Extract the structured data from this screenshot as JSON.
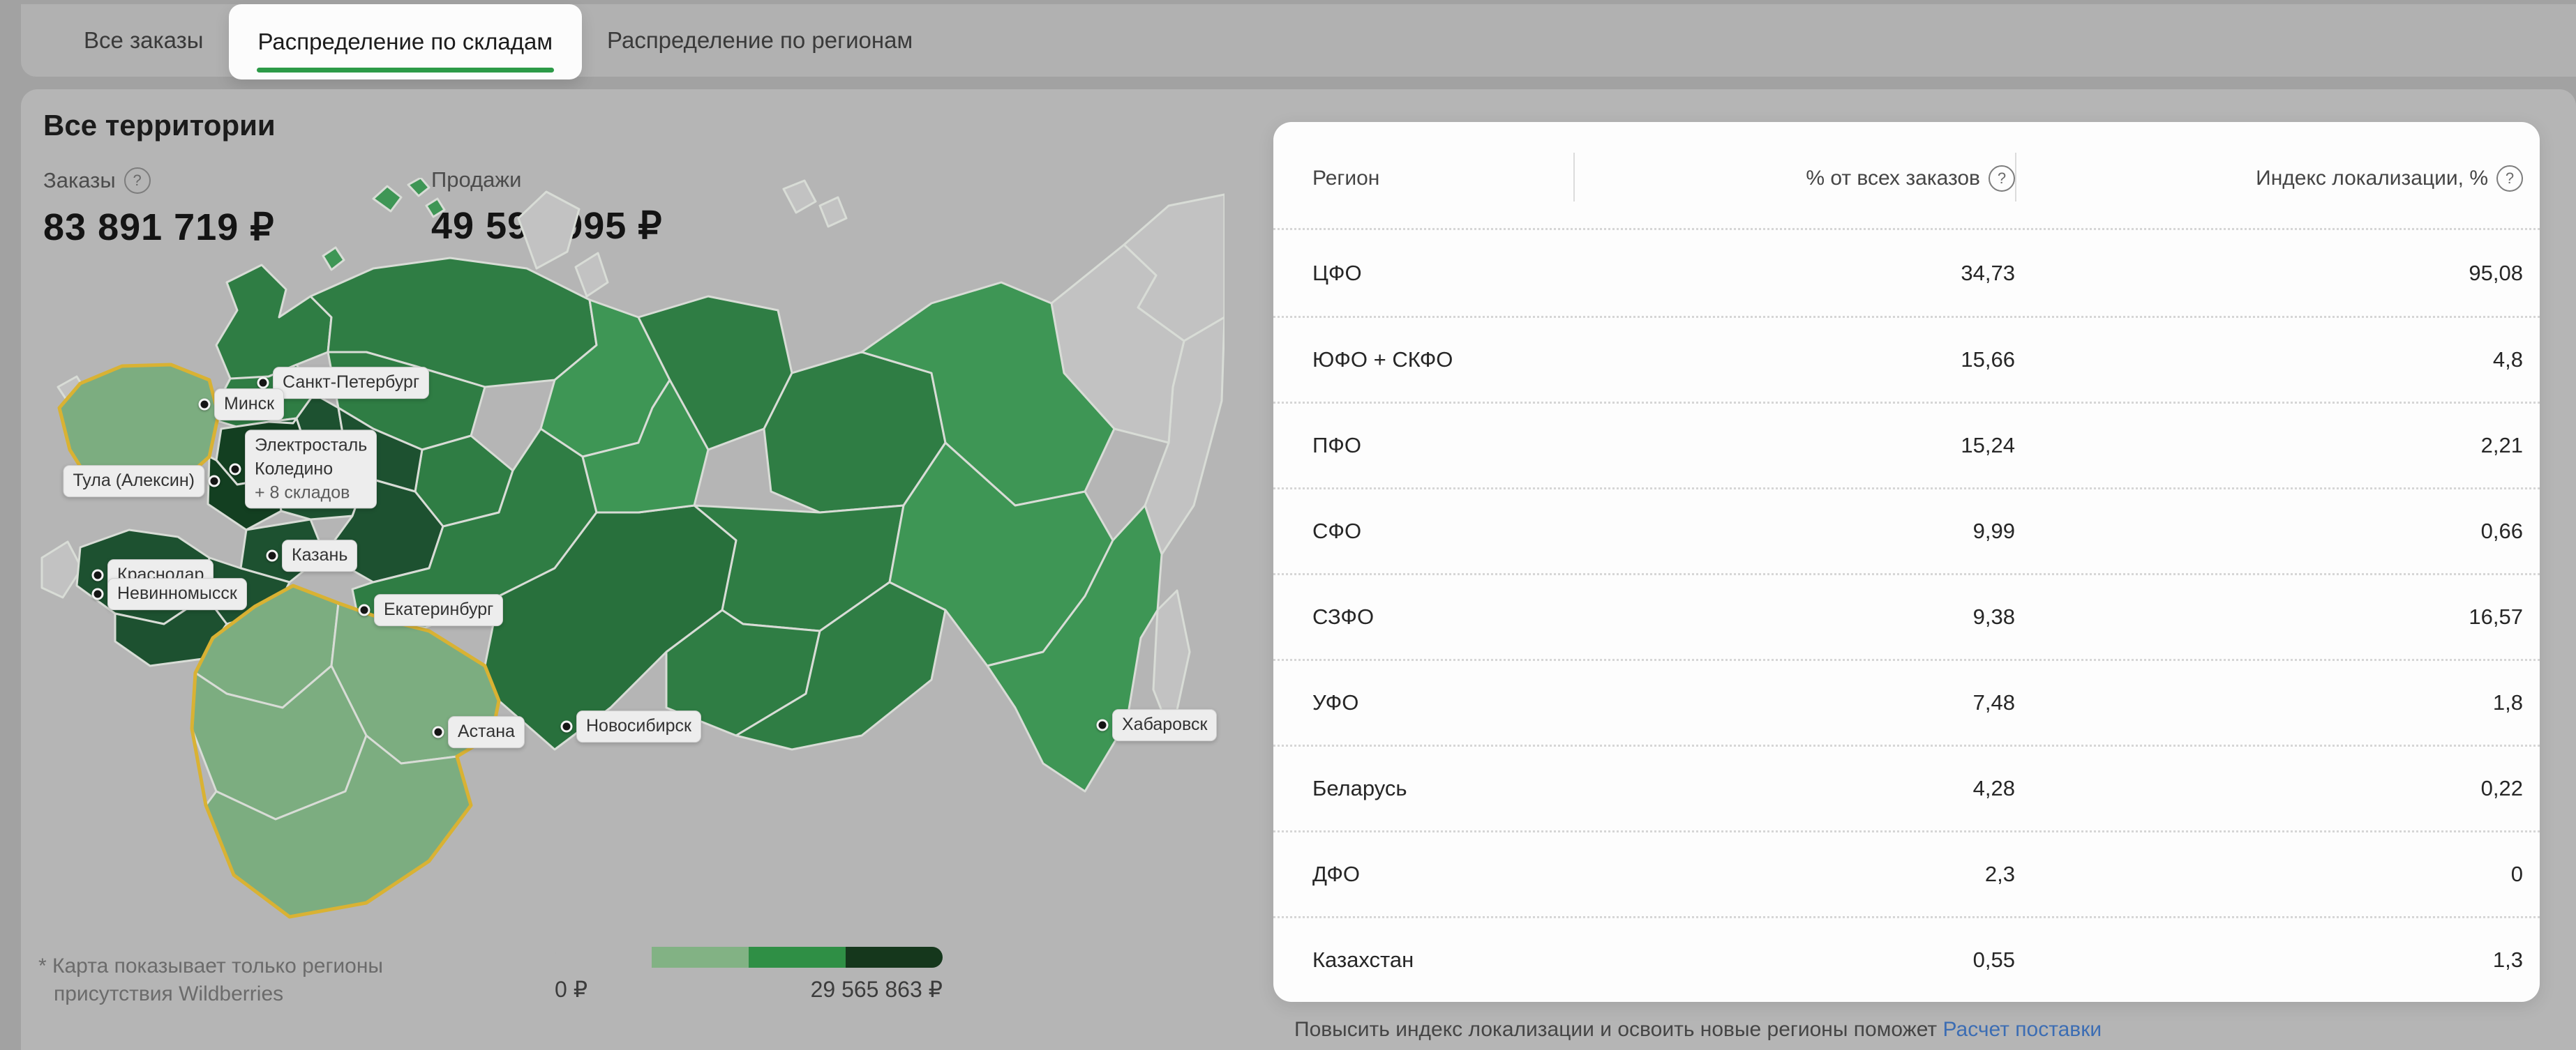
{
  "tabs": {
    "items": [
      {
        "label": "Все заказы",
        "active": false
      },
      {
        "label": "Распределение по складам",
        "active": true
      },
      {
        "label": "Распределение по регионам",
        "active": false
      }
    ]
  },
  "territory": {
    "title": "Все территории"
  },
  "stats": {
    "orders_label": "Заказы",
    "orders_value": "83 891 719 ₽",
    "sales_label": "Продажи",
    "sales_value": "49 592 995 ₽"
  },
  "map": {
    "footnote": "* Карта показывает только регионы присутствия Wildberries",
    "legend": {
      "min_label": "0 ₽",
      "max_label": "29 565 863 ₽",
      "colors": [
        "#b5b5b5",
        "#82b284",
        "#2f8f45",
        "#15371c"
      ]
    },
    "labels": [
      {
        "text": "Санкт-Петербург",
        "dot": [
          322,
          294
        ],
        "chip": [
          336,
          294
        ],
        "side": "right"
      },
      {
        "text": "Минск",
        "dot": [
          238,
          325
        ],
        "chip": [
          252,
          325
        ],
        "side": "right"
      },
      {
        "lines": [
          "Электросталь",
          "Коледино",
          "+ 8 складов"
        ],
        "dot": [
          282,
          418
        ],
        "chip": [
          296,
          418
        ],
        "side": "right"
      },
      {
        "text": "Тула (Алексин)",
        "dot": [
          252,
          435
        ],
        "chip": [
          238,
          435
        ],
        "side": "left"
      },
      {
        "text": "Краснодар",
        "dot": [
          85,
          570
        ],
        "chip": [
          99,
          570
        ],
        "side": "right"
      },
      {
        "text": "Невинномысск",
        "dot": [
          85,
          597
        ],
        "chip": [
          99,
          597
        ],
        "side": "right"
      },
      {
        "text": "Казань",
        "dot": [
          335,
          542
        ],
        "chip": [
          349,
          542
        ],
        "side": "right"
      },
      {
        "text": "Екатеринбург",
        "dot": [
          467,
          620
        ],
        "chip": [
          481,
          620
        ],
        "side": "right"
      },
      {
        "text": "Астана",
        "dot": [
          573,
          795
        ],
        "chip": [
          587,
          795
        ],
        "side": "right"
      },
      {
        "text": "Новосибирск",
        "dot": [
          757,
          787
        ],
        "chip": [
          771,
          787
        ],
        "side": "right"
      },
      {
        "text": "Хабаровск",
        "dot": [
          1525,
          785
        ],
        "chip": [
          1539,
          785
        ],
        "side": "right"
      }
    ]
  },
  "table": {
    "columns": [
      {
        "label": "Регион",
        "help": false
      },
      {
        "label": "% от всех заказов",
        "help": true
      },
      {
        "label": "Индекс локализации, %",
        "help": true
      }
    ],
    "rows": [
      [
        "ЦФО",
        "34,73",
        "95,08"
      ],
      [
        "ЮФО + СКФО",
        "15,66",
        "4,8"
      ],
      [
        "ПФО",
        "15,24",
        "2,21"
      ],
      [
        "СФО",
        "9,99",
        "0,66"
      ],
      [
        "СЗФО",
        "9,38",
        "16,57"
      ],
      [
        "УФО",
        "7,48",
        "1,8"
      ],
      [
        "Беларусь",
        "4,28",
        "0,22"
      ],
      [
        "ДФО",
        "2,3",
        "0"
      ],
      [
        "Казахстан",
        "0,55",
        "1,3"
      ]
    ]
  },
  "footer": {
    "text": "Повысить индекс локализации и освоить новые регионы поможет",
    "link": "Расчет поставки"
  },
  "colors": {
    "accent_green": "#2c9a47",
    "link_blue": "#3c6db3",
    "map_yellow": "#d9b233",
    "map_pale": "#7cad80",
    "map_mid": "#2f7d44",
    "map_bright": "#3e9655",
    "map_dark": "#1d5130",
    "map_darkest": "#133f21",
    "map_gray": "#c2c2c2"
  }
}
